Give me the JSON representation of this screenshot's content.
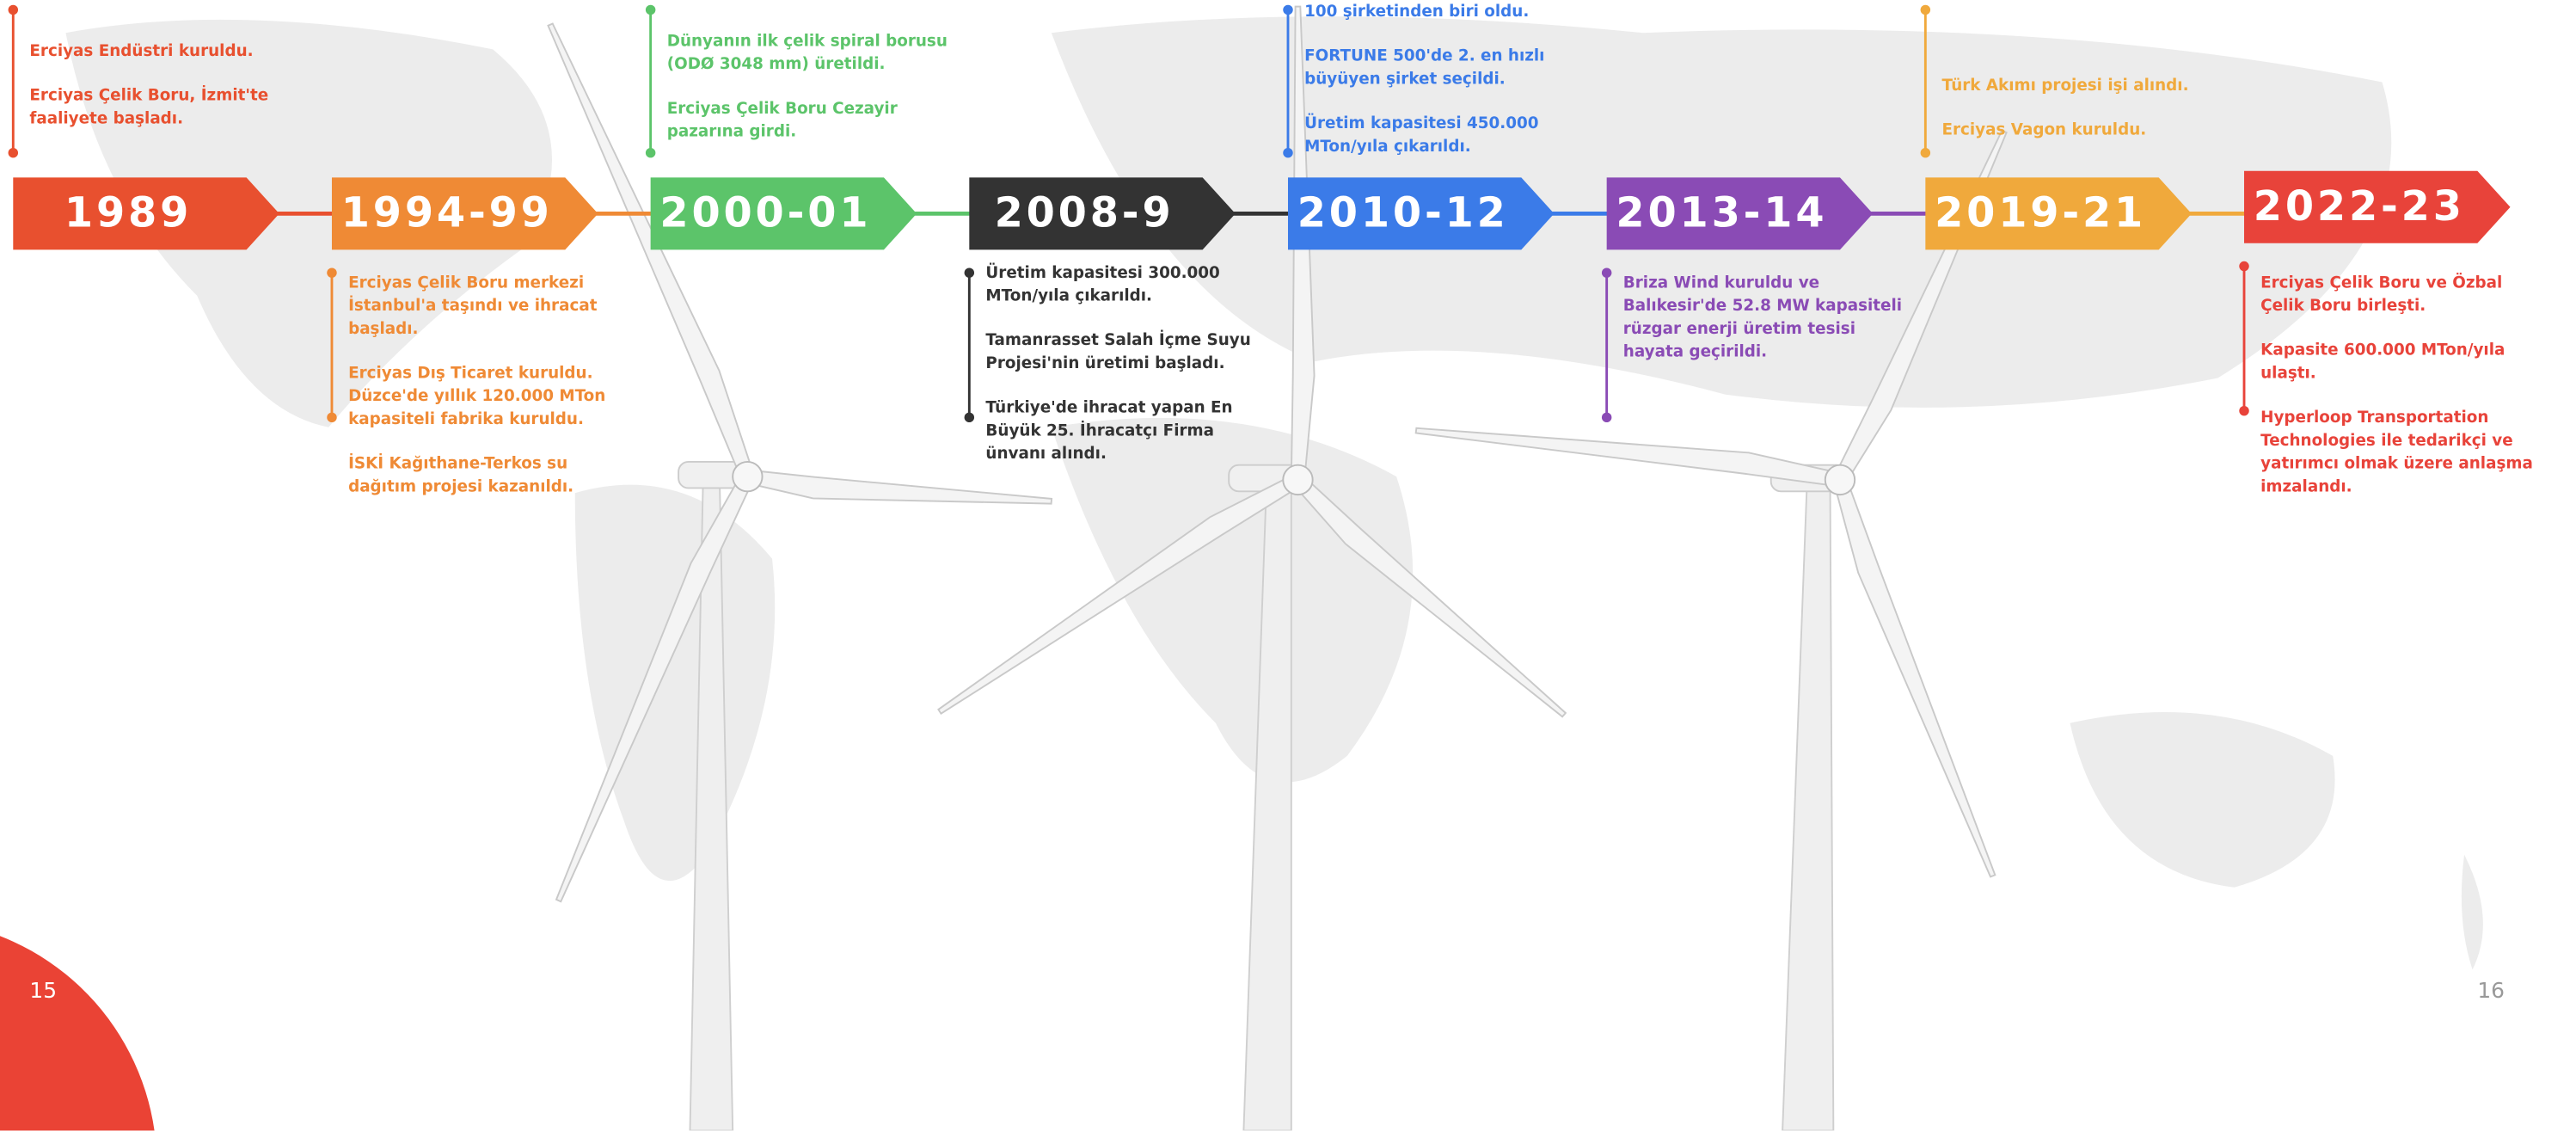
{
  "page_numbers": {
    "left": "15",
    "right": "16"
  },
  "timeline": [
    {
      "year": "1989",
      "events": [
        "Erciyas Endüstri kuruldu.",
        "Erciyas Çelik Boru, İzmit'te faaliyete başladı."
      ]
    },
    {
      "year": "1994-99",
      "events": [
        "Erciyas Çelik Boru merkezi İstanbul'a taşındı ve ihracat başladı.",
        "Erciyas Dış Ticaret kuruldu. Düzce'de yıllık 120.000 MTon kapasiteli fabrika kuruldu.",
        "İSKİ Kağıthane-Terkos su dağıtım projesi kazanıldı."
      ]
    },
    {
      "year": "2000-01",
      "events": [
        "Dünyanın ilk çelik spiral borusu (ODØ 3048 mm) üretildi.",
        "Erciyas Çelik Boru Cezayir pazarına girdi."
      ]
    },
    {
      "year": "2008-9",
      "events": [
        "Üretim kapasitesi 300.000 MTon/yıla çıkarıldı.",
        "Tamanrasset Salah İçme Suyu Projesi'nin üretimi başladı.",
        "Türkiye'de ihracat yapan En Büyük 25. İhracatçı Firma ünvanı alındı."
      ]
    },
    {
      "year": "2010-12",
      "events": [
        "100 şirketinden biri oldu.",
        "FORTUNE 500'de 2. en hızlı büyüyen şirket seçildi.",
        "Üretim kapasitesi 450.000 MTon/yıla çıkarıldı."
      ]
    },
    {
      "year": "2013-14",
      "events": [
        "Briza Wind kuruldu ve Balıkesir'de 52.8 MW kapasiteli rüzgar enerji üretim tesisi hayata geçirildi."
      ]
    },
    {
      "year": "2019-21",
      "events": [
        "Türk Akımı projesi işi alındı.",
        "Erciyas Vagon kuruldu."
      ]
    },
    {
      "year": "2022-23",
      "events": [
        "Erciyas Çelik Boru ve Özbal Çelik Boru birleşti.",
        "Kapasite 600.000 MTon/yıla ulaştı.",
        "Hyperloop Transportation Technologies ile tedarikçi ve yatırımcı olmak üzere anlaşma imzalandı."
      ]
    }
  ]
}
